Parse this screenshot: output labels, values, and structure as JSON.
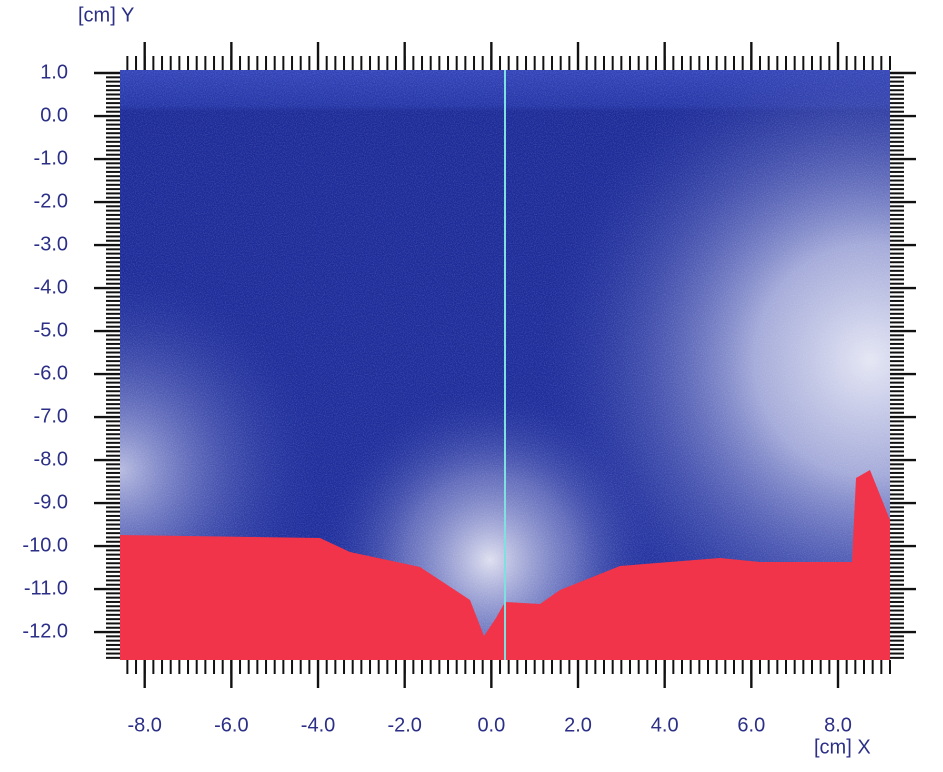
{
  "chart_data": {
    "type": "image",
    "x_label": "[cm] X",
    "y_label": "[cm] Y",
    "xlim": [
      -8.57,
      9.2
    ],
    "ylim": [
      -12.65,
      1.07
    ],
    "xticks": [
      {
        "value": -8,
        "label": "-8.0"
      },
      {
        "value": -6,
        "label": "-6.0"
      },
      {
        "value": -4,
        "label": "-4.0"
      },
      {
        "value": -2,
        "label": "-2.0"
      },
      {
        "value": 0,
        "label": "0.0"
      },
      {
        "value": 2,
        "label": "2.0"
      },
      {
        "value": 4,
        "label": "4.0"
      },
      {
        "value": 6,
        "label": "6.0"
      },
      {
        "value": 8,
        "label": "8.0"
      }
    ],
    "yticks": [
      {
        "value": 1,
        "label": "1.0"
      },
      {
        "value": 0,
        "label": "0.0"
      },
      {
        "value": -1,
        "label": "-1.0"
      },
      {
        "value": -2,
        "label": "-2.0"
      },
      {
        "value": -3,
        "label": "-3.0"
      },
      {
        "value": -4,
        "label": "-4.0"
      },
      {
        "value": -5,
        "label": "-5.0"
      },
      {
        "value": -6,
        "label": "-6.0"
      },
      {
        "value": -7,
        "label": "-7.0"
      },
      {
        "value": -8,
        "label": "-8.0"
      },
      {
        "value": -9,
        "label": "-9.0"
      },
      {
        "value": -10,
        "label": "-10.0"
      },
      {
        "value": -11,
        "label": "-11.0"
      },
      {
        "value": -12,
        "label": "-12.0"
      }
    ]
  }
}
